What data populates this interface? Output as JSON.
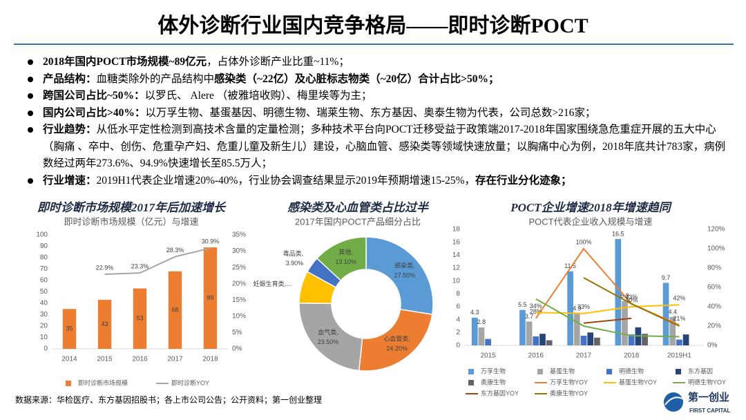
{
  "header": {
    "title": "体外诊断行业国内竞争格局——即时诊断POCT"
  },
  "bullets": [
    [
      {
        "text": "2018年国内POCT市场规模~89亿元",
        "bold": true
      },
      {
        "text": "，占体外诊断产业比重~11%；",
        "bold": false
      }
    ],
    [
      {
        "text": "产品结构：",
        "bold": true
      },
      {
        "text": "血糖类除外的产品结构中",
        "bold": false
      },
      {
        "text": "感染类（~22亿）及心脏标志物类（~20亿）合计占比>50%；",
        "bold": true
      }
    ],
    [
      {
        "text": "跨国公司占比~50%：",
        "bold": true
      },
      {
        "text": "以罗氏、 Alere （被雅培收购）、梅里埃等为主；",
        "bold": false
      }
    ],
    [
      {
        "text": "国内公司占比>40%：",
        "bold": true
      },
      {
        "text": "以万孚生物、基蛋基因、明德生物、瑞莱生物、东方基因、奥泰生物为代表，公司总数>216家；",
        "bold": false
      }
    ],
    [
      {
        "text": "行业趋势：",
        "bold": true
      },
      {
        "text": "从低水平定性检测到高技术含量的定量检测；多种技术平台向POCT迁移受益于政策端2017-2018年国家围绕急危重症开展的五大中心（胸痛 、卒中、创伤、危重孕产妇、危重儿童及新生儿）建设，心脑血管、感染类等领域快速放量；以胸痛中心为例，2018年底共计783家，病例数经过两年273.6%、94.9%快速增长至85.5万人；",
        "bold": false
      }
    ],
    [
      {
        "text": "行业增速：",
        "bold": true
      },
      {
        "text": "2019H1代表企业增速20%-40%，行业协会调查结果显示2019年预期增速15-25%，",
        "bold": false
      },
      {
        "text": "存在行业分化迹象；",
        "bold": true
      }
    ]
  ],
  "chart_data": [
    {
      "type": "bar",
      "heading": "即时诊断市场规模2017年后加速增长",
      "title": "即时诊断市场规模（亿元）与增速",
      "categories": [
        "2014",
        "2015",
        "2016",
        "2017",
        "2018"
      ],
      "ylim": [
        0,
        100
      ],
      "yticks": [
        0,
        10,
        20,
        30,
        40,
        50,
        60,
        70,
        80,
        90,
        100
      ],
      "y2lim": [
        0,
        35
      ],
      "y2ticks": [
        {
          "value": 0,
          "label": "0%"
        },
        {
          "value": 5,
          "label": "5%"
        },
        {
          "value": 10,
          "label": "10%"
        },
        {
          "value": 15,
          "label": "15%"
        },
        {
          "value": 20,
          "label": "20%"
        },
        {
          "value": 25,
          "label": "25%"
        },
        {
          "value": 30,
          "label": "30%"
        },
        {
          "value": 35,
          "label": "35%"
        }
      ],
      "grid": false,
      "series": [
        {
          "name": "即时诊断市场规模",
          "type": "bar",
          "color": "#ED7D31",
          "values": [
            35,
            43,
            53,
            68,
            89
          ],
          "value_labels": [
            "35",
            "43",
            "53",
            "68",
            "89"
          ]
        },
        {
          "name": "即时诊断YOY",
          "type": "line",
          "axis": "y2",
          "color": "#A5A5A5",
          "values": [
            null,
            22.9,
            23.3,
            28.3,
            30.9
          ],
          "value_labels": [
            null,
            "22.9%",
            "23.3%",
            "28.3%",
            "30.9%"
          ]
        }
      ]
    },
    {
      "type": "donut",
      "heading": "感染类及心血管类占比过半",
      "title": "2017年国内POCT产品细分占比",
      "categories": [
        "感染类,",
        "心血管类,",
        "血气类,",
        "妊娠生育类,...",
        "毒品类,",
        "其他,"
      ],
      "values": [
        27.5,
        24.2,
        23.5,
        7.8,
        3.9,
        13.1
      ],
      "value_labels": [
        "27.50%",
        "24.20%",
        "23.50%",
        null,
        "3.90%",
        "13.10%"
      ],
      "colors": [
        "#5B9BD5",
        "#ED7D31",
        "#A5A5A5",
        "#FFC000",
        "#4472C4",
        "#70AD47"
      ]
    },
    {
      "type": "bar",
      "heading": "POCT企业增速2018年增速趋同",
      "title": "POCT代表企业收入规模与增速",
      "categories": [
        "2015",
        "2016",
        "2017",
        "2018",
        "2019H1"
      ],
      "ylim": [
        0,
        18
      ],
      "yticks": [
        0,
        2,
        4,
        6,
        8,
        10,
        12,
        14,
        16,
        18
      ],
      "y2lim": [
        0,
        120
      ],
      "y2ticks": [
        {
          "value": 0,
          "label": "0%"
        },
        {
          "value": 20,
          "label": "20%"
        },
        {
          "value": 40,
          "label": "40%"
        },
        {
          "value": 60,
          "label": "60%"
        },
        {
          "value": 80,
          "label": "80%"
        },
        {
          "value": 100,
          "label": "100%"
        },
        {
          "value": 120,
          "label": "120%"
        }
      ],
      "grid": false,
      "series": [
        {
          "name": "万孚生物",
          "type": "bar",
          "color": "#5B9BD5",
          "values": [
            4.3,
            5.5,
            11.5,
            16.5,
            9.7
          ],
          "value_labels": [
            "4.3",
            "5.5",
            "11.5",
            "16.5",
            "9.7"
          ]
        },
        {
          "name": "基蛋生物",
          "type": "bar",
          "color": "#A5A5A5",
          "values": [
            2.8,
            3.7,
            4.9,
            6.9,
            4.4
          ],
          "value_labels": [
            "2.8",
            "3.7",
            "4.9",
            "6.9",
            "4.4"
          ]
        },
        {
          "name": "明德生物",
          "type": "bar",
          "color": "#4472C4",
          "values": [
            1.0,
            1.4,
            1.5,
            1.7,
            0.9
          ]
        },
        {
          "name": "东方基因",
          "type": "bar",
          "color": "#264478",
          "values": [
            null,
            1.8,
            2.0,
            2.8,
            1.7
          ]
        },
        {
          "name": "奥康生物",
          "type": "bar",
          "color": "#636363",
          "values": [
            null,
            0.8,
            1.2,
            1.8,
            null
          ]
        },
        {
          "name": "万孚生物YOY",
          "type": "line",
          "axis": "y2",
          "color": "#ED7D31",
          "values": [
            null,
            28,
            100,
            43,
            21
          ],
          "value_labels": [
            null,
            "28%",
            "100%",
            "43%",
            "21%"
          ]
        },
        {
          "name": "基蛋生物YOY",
          "type": "line",
          "axis": "y2",
          "color": "#FFC000",
          "values": [
            null,
            34,
            33,
            40,
            42
          ],
          "value_labels": [
            null,
            "34%",
            "33%",
            "40%",
            "42%"
          ]
        },
        {
          "name": "明德生物YOY",
          "type": "line",
          "axis": "y2",
          "color": "#70AD47",
          "values": [
            null,
            48,
            20,
            10,
            9
          ]
        },
        {
          "name": "东方基因YOY",
          "type": "line",
          "axis": "y2",
          "color": "#9E480E",
          "values": [
            null,
            null,
            23,
            28,
            null
          ]
        },
        {
          "name": "奥康生物YOY",
          "type": "line",
          "axis": "y2",
          "color": "#997300",
          "values": [
            null,
            null,
            70,
            43,
            20
          ]
        }
      ]
    }
  ],
  "source": "数据来源：华检医疗、东方基因招股书；各上市公司公告；公开资料；第一创业整理",
  "logo": {
    "name": "第一创业",
    "english": "FIRST CAPITAL"
  }
}
